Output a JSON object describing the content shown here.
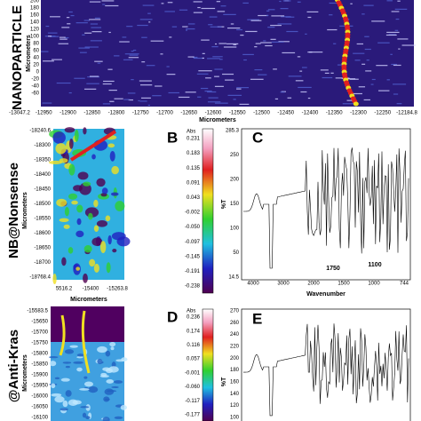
{
  "panel_a": {
    "side_label": "NANOPARTICLE",
    "y_title": "Micrometers",
    "x_title": "Micrometers",
    "yticks": [
      "200",
      "180",
      "160",
      "140",
      "120",
      "100",
      "80",
      "60",
      "40",
      "20",
      "0",
      "-20",
      "-40",
      "-60"
    ],
    "xticks": [
      "-13047.2",
      "-12950",
      "-12900",
      "-12850",
      "-12800",
      "-12750",
      "-12700",
      "-12650",
      "-12600",
      "-12550",
      "-12500",
      "-12450",
      "-12400",
      "-12350",
      "-12300",
      "-12250",
      "-12184.8"
    ]
  },
  "panel_nb": {
    "side_label": "NB@Nonsense",
    "y_title": "Micrometers",
    "x_title": "Micrometers",
    "yticks": [
      "-18240.6",
      "-18300",
      "-18350",
      "-18400",
      "-18450",
      "-18500",
      "-18550",
      "-18600",
      "-18650",
      "-18700",
      "-18768.4"
    ],
    "xticks": [
      "5516.2",
      "-15400",
      "-15263.8"
    ]
  },
  "panel_b": {
    "letter": "B",
    "unit": "Abs",
    "ticks": [
      "0.231",
      "0.183",
      "0.135",
      "0.091",
      "0.043",
      "-0.002",
      "-0.050",
      "-0.097",
      "-0.145",
      "-0.191",
      "-0.238"
    ]
  },
  "panel_c": {
    "letter": "C",
    "y_title": "%T",
    "x_title": "Wavenumber",
    "yticks": [
      "285.3",
      "250",
      "200",
      "150",
      "100",
      "50",
      "14.5"
    ],
    "xticks": [
      "4000",
      "3000",
      "2000",
      "1500",
      "1000",
      "744"
    ],
    "annotations": [
      "1750",
      "1100"
    ]
  },
  "panel_kras": {
    "side_label": "@Anti-Kras",
    "y_title": "Micrometers",
    "yticks": [
      "-15583.5",
      "-15650",
      "-15700",
      "-15750",
      "-15800",
      "-15850",
      "-15900",
      "-15950",
      "-16000",
      "-16050",
      "-16100"
    ]
  },
  "panel_d": {
    "letter": "D",
    "unit": "Abs",
    "ticks": [
      "0.236",
      "0.174",
      "0.116",
      "0.057",
      "-0.001",
      "-0.060",
      "-0.117",
      "-0.177"
    ]
  },
  "panel_e": {
    "letter": "E",
    "y_title": "%T",
    "yticks": [
      "270",
      "260",
      "240",
      "220",
      "200",
      "180",
      "160",
      "140",
      "120",
      "100"
    ]
  }
}
